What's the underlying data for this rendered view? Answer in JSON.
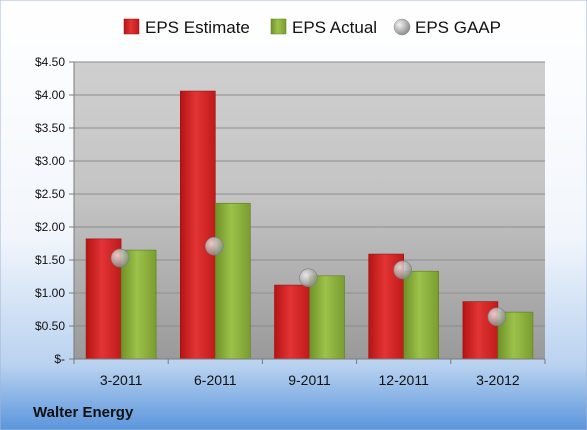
{
  "chart_data": {
    "type": "bar",
    "categories": [
      "3-2011",
      "6-2011",
      "9-2011",
      "12-2011",
      "3-2012"
    ],
    "series": [
      {
        "name": "EPS Estimate",
        "values": [
          1.82,
          4.06,
          1.12,
          1.59,
          0.87
        ],
        "color": "#d21f1f"
      },
      {
        "name": "EPS Actual",
        "values": [
          1.65,
          2.36,
          1.26,
          1.33,
          0.71
        ],
        "color": "#8cb13a"
      }
    ],
    "markers": {
      "name": "EPS GAAP",
      "values": [
        1.53,
        1.71,
        1.23,
        1.35,
        0.64
      ],
      "color": "#aaaaaa"
    },
    "ylim": [
      0,
      4.5
    ],
    "yticks": [
      0,
      0.5,
      1.0,
      1.5,
      2.0,
      2.5,
      3.0,
      3.5,
      4.0,
      4.5
    ],
    "ytick_labels": [
      "$-",
      "$0.50",
      "$1.00",
      "$1.50",
      "$2.00",
      "$2.50",
      "$3.00",
      "$3.50",
      "$4.00",
      "$4.50"
    ],
    "grid": true,
    "legend_position": "top"
  },
  "company_label": "Walter Energy"
}
